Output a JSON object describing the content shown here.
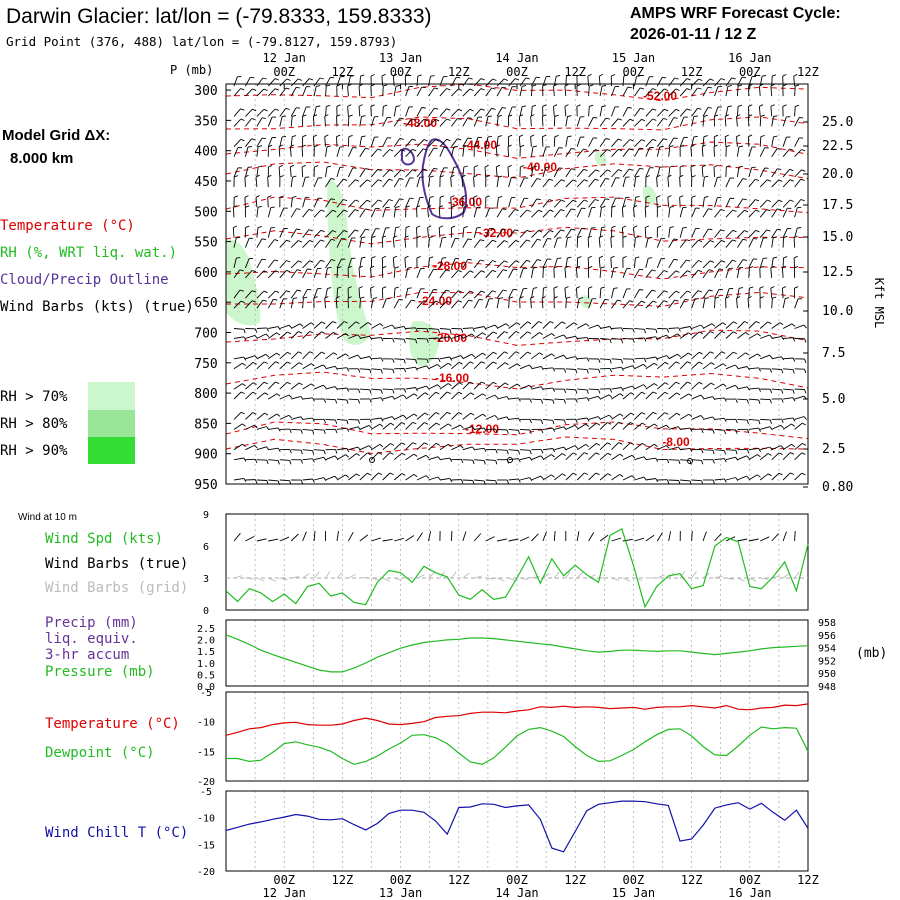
{
  "header": {
    "title": "Darwin Glacier:  lat/lon = (-79.8333, 159.8333)",
    "subtitle": "Grid Point (376, 488) lat/lon = (-79.8127, 159.8793)",
    "cycle_label": "AMPS WRF Forecast Cycle:",
    "cycle_value": "2026-01-11 / 12  Z"
  },
  "model_grid": {
    "label": "Model Grid ΔX:",
    "value": "8.000 km"
  },
  "legend": {
    "temperature": "Temperature (°C)",
    "rh": "RH (%, WRT liq. wat.)",
    "cloud": "Cloud/Precip Outline",
    "wind": "Wind Barbs (kts) (true)",
    "rh_levels": [
      {
        "label": "RH > 70%",
        "color": "#ccf7cc"
      },
      {
        "label": "RH > 80%",
        "color": "#99e699"
      },
      {
        "label": "RH > 90%",
        "color": "#33dd33"
      }
    ]
  },
  "colors": {
    "temperature": "#dd0000",
    "rh_light": "#ccf7cc",
    "green": "#22bb22",
    "cloud": "#553399",
    "precip": "#663399",
    "windchill": "#1111aa",
    "grid": "#999999"
  },
  "time_axis": {
    "tick_labels": [
      "00Z",
      "12Z",
      "00Z",
      "12Z",
      "00Z",
      "12Z",
      "00Z",
      "12Z",
      "00Z",
      "12Z"
    ],
    "date_labels": [
      "12 Jan",
      "13 Jan",
      "14 Jan",
      "15 Jan",
      "16 Jan"
    ]
  },
  "chart_data": [
    {
      "name": "upper-air time-height section",
      "type": "heatmap",
      "x_hours": [
        -12,
        108
      ],
      "ylabel": "P (mb)",
      "y_ticks": [
        300,
        350,
        400,
        450,
        500,
        550,
        600,
        650,
        700,
        750,
        800,
        850,
        900,
        950
      ],
      "right_axis_label": "Kft MSL",
      "right_ticks": [
        "25.0",
        "22.5",
        "20.0",
        "17.5",
        "15.0",
        "12.5",
        "10.0",
        "7.5",
        "5.0",
        "2.5",
        "0.80"
      ],
      "temperature_contours": [
        "-52.00",
        "-48.00",
        "-44.00",
        "-40.00",
        "-36.00",
        "-32.00",
        "-28.00",
        "-24.00",
        "-20.00",
        "-16.00",
        "-12.00",
        "-8.00"
      ]
    },
    {
      "name": "10 m wind",
      "type": "line",
      "title": "Wind at 10 m",
      "ylim": [
        0,
        9
      ],
      "y_ticks": [
        "0",
        "3",
        "6",
        "9"
      ],
      "labels": {
        "speed": "Wind Spd (kts)",
        "barbs_true": "Wind Barbs (true)",
        "barbs_grid": "Wind Barbs (grid)"
      },
      "series": [
        {
          "name": "Wind Spd (kts)",
          "values": [
            1.8,
            0.8,
            2.0,
            1.6,
            0.8,
            1.5,
            0.6,
            2.2,
            2.5,
            1.3,
            1.6,
            0.7,
            0.5,
            2.6,
            3.7,
            3.5,
            2.6,
            4.1,
            3.5,
            3.1,
            1.4,
            1.0,
            1.9,
            1.0,
            1.2,
            3.0,
            5.0,
            2.5,
            4.8,
            3.2,
            4.2,
            3.3,
            2.6,
            7.0,
            7.6,
            4.2,
            0.3,
            2.2,
            3.2,
            3.4,
            2.0,
            2.3,
            6.0,
            6.8,
            6.4,
            2.2,
            2.0,
            3.1,
            4.5,
            1.8,
            6.2
          ]
        }
      ]
    },
    {
      "name": "precipitation and pressure",
      "type": "line",
      "labels": {
        "precip_1": "Precip (mm)",
        "precip_2": "liq. equiv.",
        "precip_3": "3-hr accum",
        "pressure": "Pressure (mb)"
      },
      "precip_ticks": [
        "0.0",
        "0.5",
        "1.0",
        "1.5",
        "2.0",
        "2.5"
      ],
      "pressure_ticks": [
        "948",
        "950",
        "952",
        "954",
        "956",
        "958"
      ],
      "pressure_unit": "(mb)",
      "pressure_ylim": [
        948,
        958
      ],
      "series": [
        {
          "name": "Pressure (mb)",
          "values": [
            956.0,
            955.3,
            954.5,
            953.6,
            952.9,
            952.3,
            951.7,
            951.1,
            950.5,
            950.2,
            950.2,
            950.8,
            951.6,
            952.5,
            953.2,
            953.9,
            954.4,
            954.8,
            955.0,
            955.2,
            955.3,
            955.5,
            955.5,
            955.4,
            955.2,
            955.0,
            954.8,
            954.6,
            954.4,
            954.1,
            953.8,
            953.5,
            953.3,
            953.4,
            953.6,
            953.6,
            953.5,
            953.4,
            953.5,
            953.5,
            953.3,
            953.1,
            952.9,
            953.1,
            953.3,
            953.5,
            953.8,
            954.0,
            954.1,
            954.2,
            954.3
          ]
        }
      ]
    },
    {
      "name": "temperature and dewpoint",
      "type": "line",
      "labels": {
        "temperature": "Temperature (°C)",
        "dewpoint": "Dewpoint (°C)"
      },
      "ylim": [
        -20,
        -5
      ],
      "y_ticks": [
        "-20",
        "-15",
        "-10",
        "-5"
      ],
      "series": [
        {
          "name": "Temperature (°C)",
          "values": [
            -12.3,
            -11.8,
            -11.2,
            -11.0,
            -10.5,
            -10.2,
            -10.1,
            -10.5,
            -10.6,
            -10.6,
            -10.4,
            -9.8,
            -9.4,
            -9.8,
            -10.4,
            -10.5,
            -10.3,
            -10.0,
            -9.3,
            -9.1,
            -9.0,
            -8.6,
            -8.4,
            -8.4,
            -8.5,
            -8.2,
            -8.0,
            -7.5,
            -7.6,
            -7.4,
            -7.6,
            -7.5,
            -7.6,
            -7.8,
            -7.7,
            -7.6,
            -7.9,
            -7.6,
            -7.5,
            -7.5,
            -7.3,
            -7.5,
            -7.7,
            -7.3,
            -7.9,
            -8.0,
            -7.7,
            -7.6,
            -7.2,
            -7.3,
            -7.0
          ]
        },
        {
          "name": "Dewpoint (°C)",
          "values": [
            -16.2,
            -16.2,
            -16.7,
            -16.5,
            -15.2,
            -13.7,
            -13.4,
            -13.9,
            -14.3,
            -15.0,
            -16.2,
            -17.2,
            -16.7,
            -15.8,
            -14.6,
            -13.6,
            -12.3,
            -12.2,
            -12.7,
            -13.7,
            -15.3,
            -16.8,
            -17.2,
            -16.1,
            -14.3,
            -12.4,
            -11.3,
            -11.0,
            -11.6,
            -12.5,
            -14.2,
            -15.7,
            -16.7,
            -16.6,
            -15.7,
            -14.7,
            -13.4,
            -12.2,
            -11.3,
            -11.2,
            -12.4,
            -14.2,
            -15.6,
            -15.7,
            -14.1,
            -12.3,
            -10.9,
            -11.2,
            -11.0,
            -11.1,
            -15.0
          ]
        }
      ]
    },
    {
      "name": "wind chill",
      "type": "line",
      "labels": {
        "windchill": "Wind Chill T (°C)"
      },
      "ylim": [
        -20,
        -5
      ],
      "y_ticks": [
        "-20",
        "-15",
        "-10",
        "-5"
      ],
      "series": [
        {
          "name": "Wind Chill T (°C)",
          "values": [
            -12.4,
            -11.8,
            -11.2,
            -10.8,
            -10.3,
            -9.9,
            -9.4,
            -9.7,
            -10.3,
            -10.4,
            -10.2,
            -11.3,
            -12.3,
            -11.1,
            -9.2,
            -8.6,
            -8.6,
            -9.0,
            -10.6,
            -13.1,
            -8.1,
            -8.0,
            -7.4,
            -7.5,
            -8.1,
            -7.8,
            -7.6,
            -10.3,
            -15.7,
            -16.4,
            -12.6,
            -8.7,
            -7.5,
            -7.2,
            -6.9,
            -6.9,
            -7.0,
            -7.4,
            -7.7,
            -14.4,
            -14.0,
            -11.4,
            -8.2,
            -7.6,
            -7.2,
            -8.4,
            -7.3,
            -9.0,
            -10.5,
            -8.6,
            -12.0
          ]
        }
      ]
    }
  ]
}
